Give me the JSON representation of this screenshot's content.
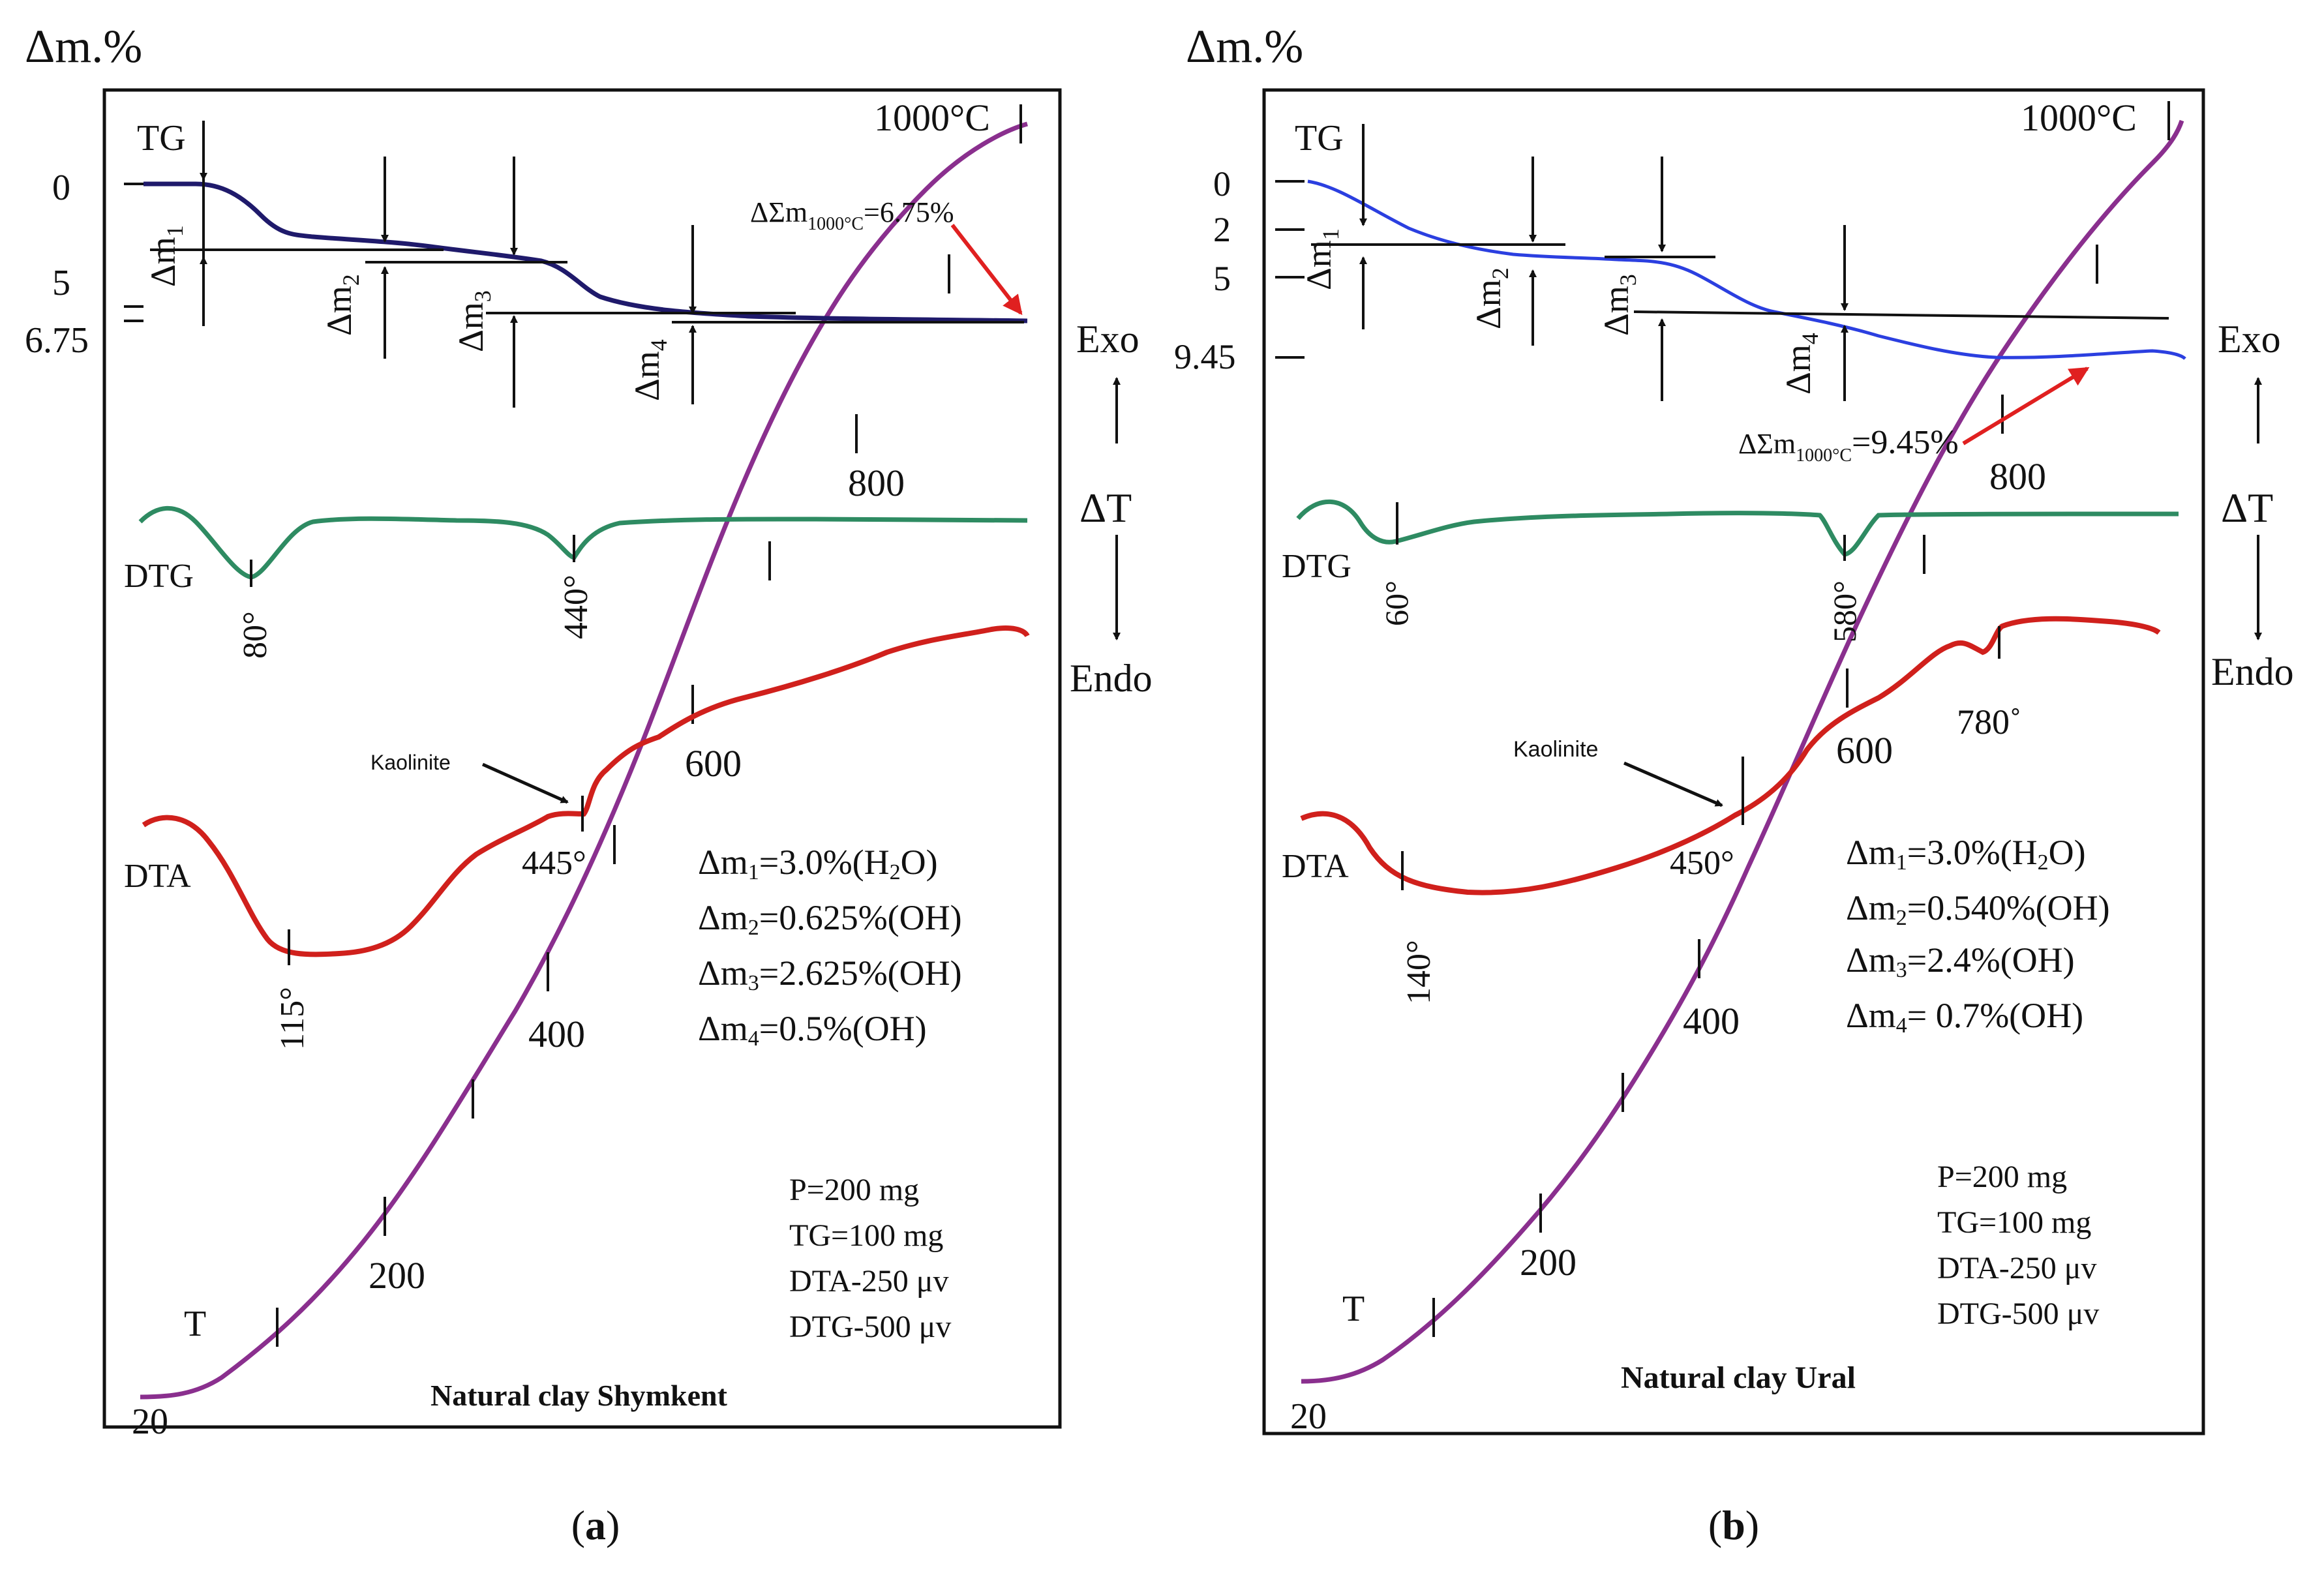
{
  "colors": {
    "tg_a": "#1f1a6b",
    "tg_b": "#2b3fe0",
    "dtg": "#2e8b62",
    "dta": "#d0201c",
    "temperature": "#8a2f8e",
    "annotation_arrow": "#e02020"
  },
  "chart_data": [
    {
      "type": "line",
      "panel": "a",
      "caption": "a",
      "title": "Natural clay Shymkent",
      "ylabel": "Δm.%",
      "y_ticks": [
        "0",
        "5",
        "6.75"
      ],
      "total_loss_label": "ΔΣm",
      "total_loss_sub": "1000°C",
      "total_loss_value": "=6.75%",
      "temperature_max_label": "1000°C",
      "temperature_ticks": [
        "200",
        "400",
        "600",
        "800"
      ],
      "temperature_start": "20",
      "curve_labels": {
        "tg": "TG",
        "dtg": "DTG",
        "dta": "DTA",
        "t": "T"
      },
      "step_labels": [
        "Δm",
        "Δm",
        "Δm",
        "Δm"
      ],
      "step_subs": [
        "1",
        "2",
        "3",
        "4"
      ],
      "dtg_peaks": [
        "80°",
        "440°"
      ],
      "dta_peaks": [
        "115°",
        "445°"
      ],
      "kaolinite_label": "Kaolinite",
      "mass_losses": [
        {
          "name": "Δm",
          "sub": "1",
          "value": "=3.0%(H",
          "tail_sub": "2",
          "tail": "O)"
        },
        {
          "name": "Δm",
          "sub": "2",
          "value": "=0.625%(OH)",
          "tail_sub": "",
          "tail": ""
        },
        {
          "name": "Δm",
          "sub": "3",
          "value": "=2.625%(OH)",
          "tail_sub": "",
          "tail": ""
        },
        {
          "name": "Δm",
          "sub": "4",
          "value": "=0.5%(OH)",
          "tail_sub": "",
          "tail": ""
        }
      ],
      "conditions": [
        "P=200 mg",
        "TG=100 mg",
        "DTA-250 μv",
        "DTG-500 μv"
      ],
      "series": [
        {
          "name": "TG",
          "x_temperature_c": [
            20,
            60,
            80,
            100,
            160,
            250,
            350,
            440,
            500,
            600,
            800,
            1000
          ],
          "mass_loss_pct": [
            0,
            0,
            0.5,
            2.2,
            3.0,
            3.3,
            3.8,
            4.8,
            6.0,
            6.5,
            6.7,
            6.75
          ]
        },
        {
          "name": "DTG",
          "peaks_c": [
            80,
            440
          ]
        },
        {
          "name": "DTA",
          "peaks_c": [
            115,
            445
          ]
        }
      ]
    },
    {
      "type": "line",
      "panel": "b",
      "caption": "b",
      "title": "Natural clay Ural",
      "ylabel": "Δm.%",
      "y_ticks": [
        "0",
        "2",
        "5",
        "9.45"
      ],
      "total_loss_label": "ΔΣm",
      "total_loss_sub": "1000°C",
      "total_loss_value": "=9.45%",
      "temperature_max_label": "1000°C",
      "temperature_ticks": [
        "200",
        "400",
        "600",
        "800"
      ],
      "temperature_start": "20",
      "curve_labels": {
        "tg": "TG",
        "dtg": "DTG",
        "dta": "DTA",
        "t": "T"
      },
      "step_labels": [
        "Δm",
        "Δm",
        "Δm",
        "Δm"
      ],
      "step_subs": [
        "1",
        "2",
        "3",
        "4"
      ],
      "dtg_peaks": [
        "60°",
        "580°"
      ],
      "dta_peaks": [
        "140°",
        "450°",
        "780˚"
      ],
      "kaolinite_label": "Kaolinite",
      "mass_losses": [
        {
          "name": "Δm",
          "sub": "1",
          "value": "=3.0%(H",
          "tail_sub": "2",
          "tail": "O)"
        },
        {
          "name": "Δm",
          "sub": "2",
          "value": "=0.540%(OH)",
          "tail_sub": "",
          "tail": ""
        },
        {
          "name": "Δm",
          "sub": "3",
          "value": "=2.4%(OH)",
          "tail_sub": "",
          "tail": ""
        },
        {
          "name": "Δm",
          "sub": "4",
          "value": "= 0.7%(OH)",
          "tail_sub": "",
          "tail": ""
        }
      ],
      "conditions": [
        "P=200 mg",
        "TG=100 mg",
        "DTA-250 μv",
        "DTG-500 μv"
      ],
      "series": [
        {
          "name": "TG",
          "x_temperature_c": [
            20,
            100,
            200,
            300,
            450,
            580,
            700,
            800,
            1000
          ],
          "mass_loss_pct": [
            0,
            1.5,
            3.0,
            3.6,
            4.2,
            6.5,
            8.5,
            9.4,
            9.45
          ]
        },
        {
          "name": "DTG",
          "peaks_c": [
            60,
            580
          ]
        },
        {
          "name": "DTA",
          "peaks_c": [
            140,
            450,
            780
          ]
        }
      ]
    }
  ],
  "side_axis": {
    "exo": "Exo",
    "delta_t": "ΔT",
    "endo": "Endo"
  }
}
